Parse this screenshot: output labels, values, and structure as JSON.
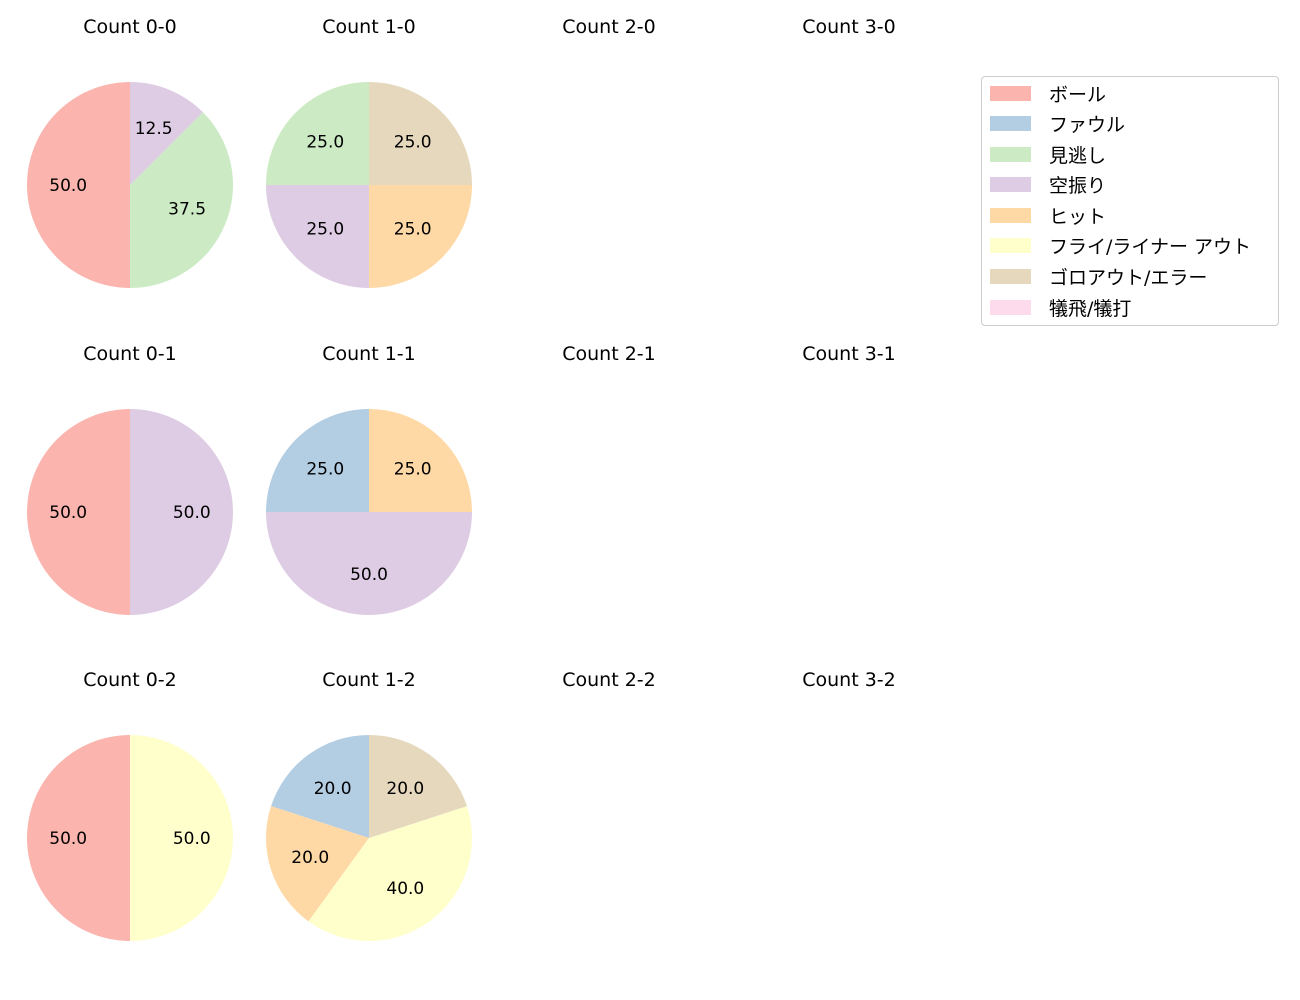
{
  "legend": {
    "items": [
      {
        "label": "ボール",
        "color": "#fbb4ae"
      },
      {
        "label": "ファウル",
        "color": "#b3cde3"
      },
      {
        "label": "見逃し",
        "color": "#ccebc5"
      },
      {
        "label": "空振り",
        "color": "#decbe4"
      },
      {
        "label": "ヒット",
        "color": "#fed9a6"
      },
      {
        "label": "フライ/ライナー アウト",
        "color": "#ffffcc"
      },
      {
        "label": "ゴロアウト/エラー",
        "color": "#e5d8bd"
      },
      {
        "label": "犠飛/犠打",
        "color": "#fddaec"
      }
    ]
  },
  "chart_data": {
    "type": "pie",
    "title": "",
    "categories": [
      "ボール",
      "ファウル",
      "見逃し",
      "空振り",
      "ヒット",
      "フライ/ライナー アウト",
      "ゴロアウト/エラー",
      "犠飛/犠打"
    ],
    "colors": [
      "#fbb4ae",
      "#b3cde3",
      "#ccebc5",
      "#decbe4",
      "#fed9a6",
      "#ffffcc",
      "#e5d8bd",
      "#fddaec"
    ],
    "start_angle": 90,
    "direction": "counterclockwise",
    "panels": [
      {
        "title": "Count 0-0",
        "row": 0,
        "col": 0,
        "values": [
          50.0,
          0,
          37.5,
          12.5,
          0,
          0,
          0,
          0
        ]
      },
      {
        "title": "Count 1-0",
        "row": 0,
        "col": 1,
        "values": [
          0,
          0,
          25.0,
          25.0,
          25.0,
          0,
          25.0,
          0
        ],
        "order": [
          2,
          6,
          4,
          3
        ]
      },
      {
        "title": "Count 2-0",
        "row": 0,
        "col": 2,
        "values": []
      },
      {
        "title": "Count 3-0",
        "row": 0,
        "col": 3,
        "values": []
      },
      {
        "title": "Count 0-1",
        "row": 1,
        "col": 0,
        "values": [
          50.0,
          0,
          0,
          50.0,
          0,
          0,
          0,
          0
        ]
      },
      {
        "title": "Count 1-1",
        "row": 1,
        "col": 1,
        "values": [
          0,
          25.0,
          0,
          50.0,
          25.0,
          0,
          0,
          0
        ],
        "order": [
          1,
          4,
          3
        ]
      },
      {
        "title": "Count 2-1",
        "row": 1,
        "col": 2,
        "values": []
      },
      {
        "title": "Count 3-1",
        "row": 1,
        "col": 3,
        "values": []
      },
      {
        "title": "Count 0-2",
        "row": 2,
        "col": 0,
        "values": [
          50.0,
          0,
          0,
          0,
          0,
          50.0,
          0,
          0
        ]
      },
      {
        "title": "Count 1-2",
        "row": 2,
        "col": 1,
        "values": [
          0,
          20.0,
          0,
          0,
          20.0,
          40.0,
          20.0,
          0
        ],
        "order": [
          1,
          6,
          5,
          4
        ]
      },
      {
        "title": "Count 2-2",
        "row": 2,
        "col": 2,
        "values": []
      },
      {
        "title": "Count 3-2",
        "row": 2,
        "col": 3,
        "values": []
      }
    ]
  }
}
